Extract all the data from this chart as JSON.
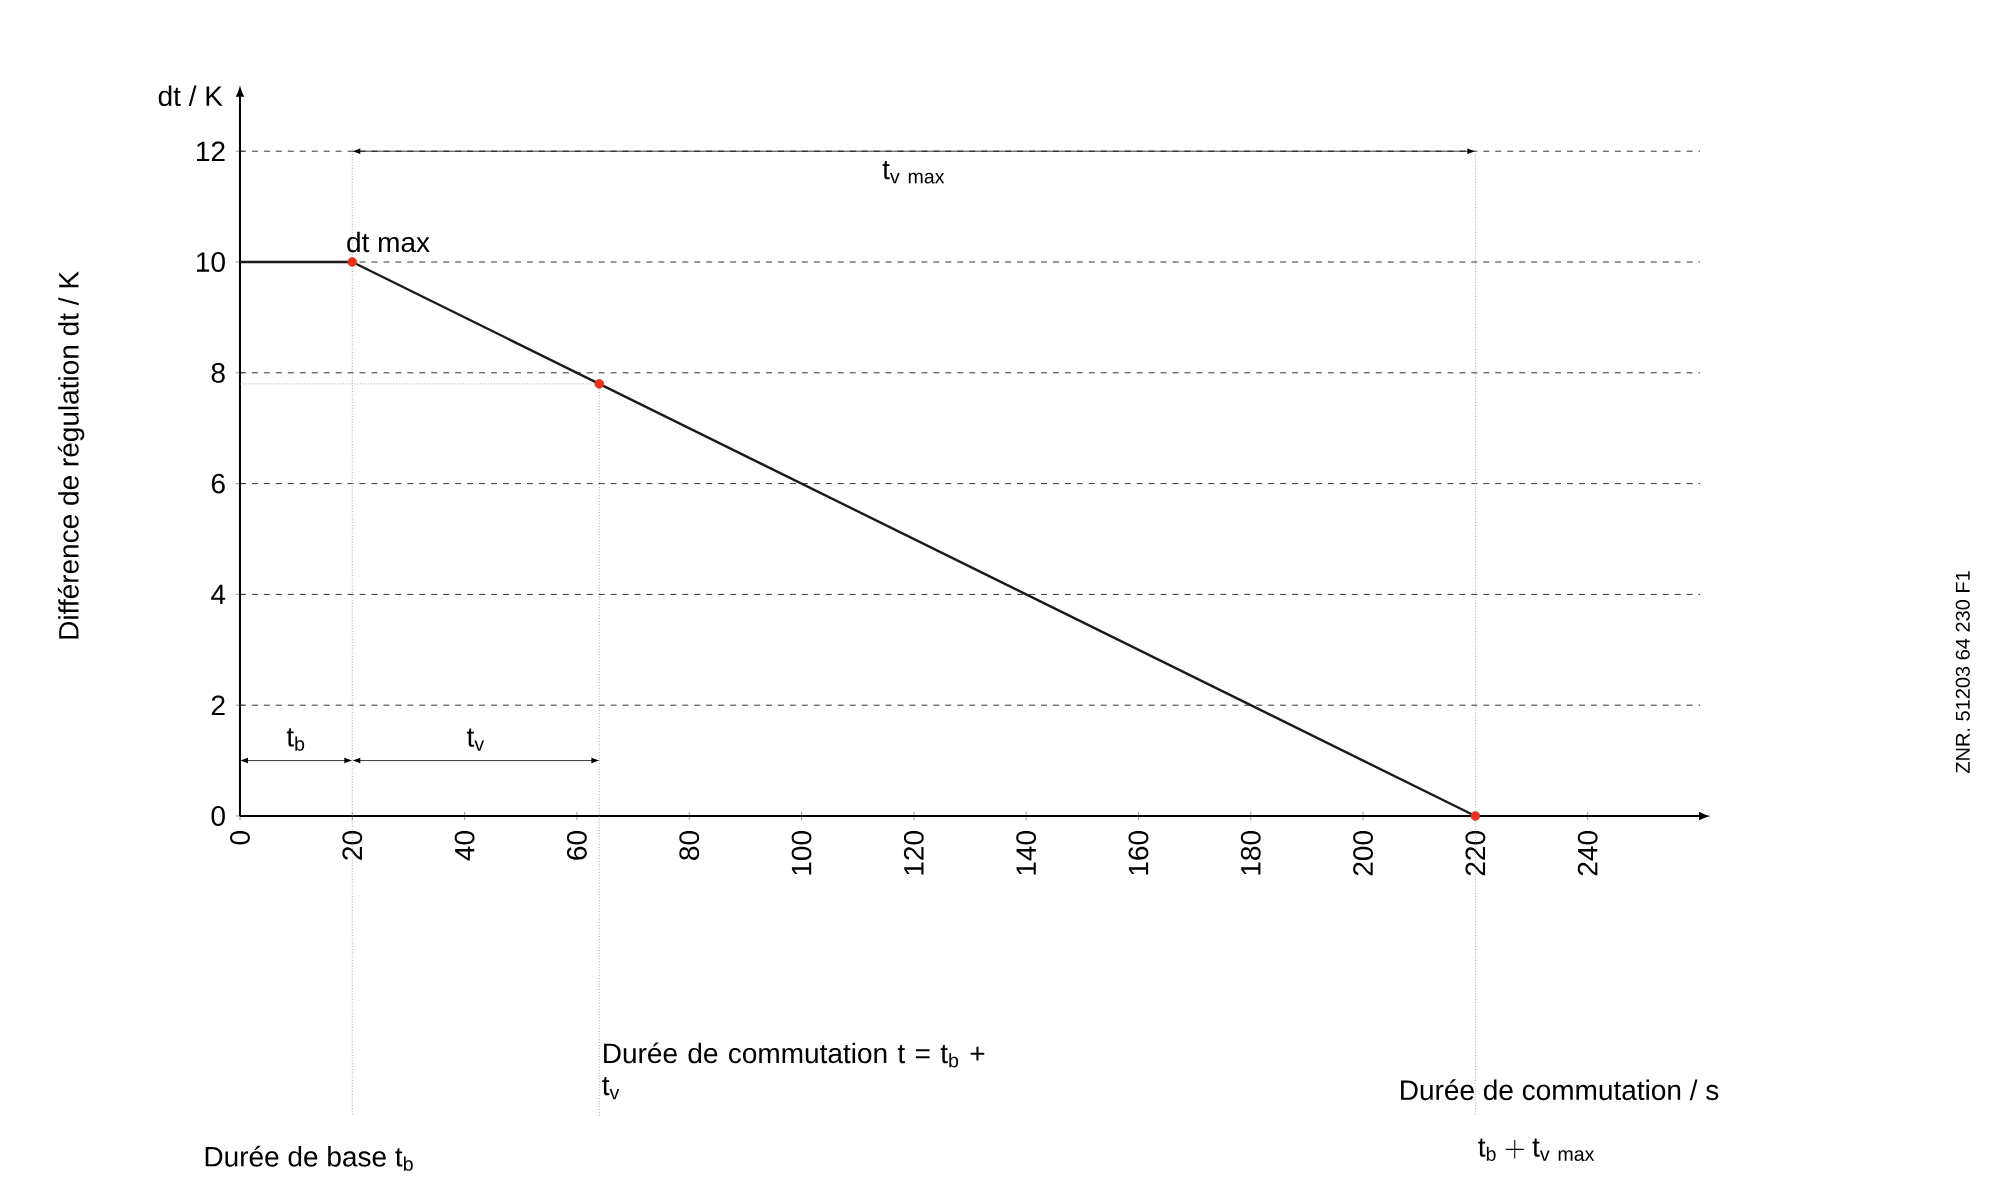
{
  "chart_data": {
    "type": "line",
    "ylabel": "Différence de régulation dt / K",
    "xlim": [
      0,
      260
    ],
    "ylim": [
      0,
      13
    ],
    "ref_lines": [
      {
        "axis": "x",
        "value": 20,
        "color": "#808080",
        "line_style": "dotted"
      },
      {
        "axis": "x",
        "value": 64,
        "color": "#808080",
        "line_style": "dotted"
      },
      {
        "axis": "x",
        "value": 220,
        "color": "#808080",
        "line_style": "dotted"
      },
      {
        "axis": "y",
        "value": 7.8,
        "color": "#808080",
        "line_style": "dotted"
      }
    ],
    "xticks": [
      0,
      20,
      40,
      60,
      80,
      100,
      120,
      140,
      160,
      180,
      200,
      220,
      240
    ],
    "yticks": [
      0,
      2,
      4,
      6,
      8,
      10,
      12
    ],
    "grid": "y",
    "series": [
      {
        "color": "#1a1a1a",
        "x": [
          0,
          20,
          220
        ],
        "values": [
          10,
          10,
          0
        ]
      },
      {
        "type": "scatter",
        "color": "#e8321e",
        "x": [
          20,
          64,
          220
        ],
        "values": [
          10,
          7.8,
          0
        ]
      }
    ],
    "annotations": [
      "dt max",
      "\\mathrm{t}_{\\mathrm{v\\ max}}",
      "t$_{b}$",
      "t$_{v}$",
      "Durée de base t$_{b}$",
      "Durée de commutation t = t$_{b}$ + t$_{v}$",
      "\\mathrm{t}_{\\mathrm{b}} + \\mathrm{t}_{\\mathrm{v\\ max}}",
      "dt / K",
      "ZNR. 51203 64 230 F1",
      "Durée de commutation / s"
    ]
  }
}
